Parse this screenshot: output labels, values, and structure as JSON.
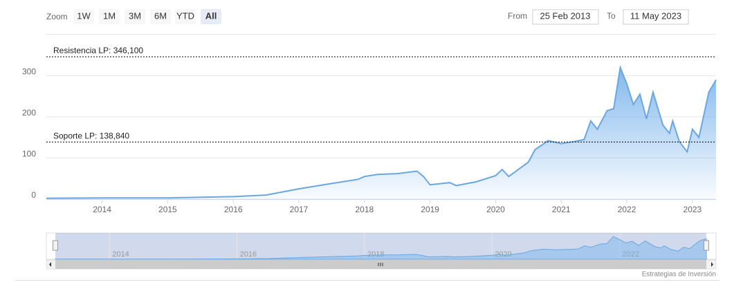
{
  "range_selector": {
    "zoom_label": "Zoom",
    "buttons": [
      "1W",
      "1M",
      "3M",
      "6M",
      "YTD",
      "All"
    ],
    "selected": "All",
    "from_label": "From",
    "from": "25 Feb 2013",
    "to_label": "To",
    "to": "11 May 2023"
  },
  "chart_data": {
    "type": "area",
    "x": [
      2013.15,
      2014,
      2015,
      2016,
      2016.5,
      2017,
      2017.5,
      2017.9,
      2018,
      2018.2,
      2018.5,
      2018.8,
      2018.9,
      2019,
      2019.3,
      2019.4,
      2019.7,
      2020,
      2020.1,
      2020.2,
      2020.5,
      2020.6,
      2020.8,
      2021,
      2021.2,
      2021.35,
      2021.45,
      2021.55,
      2021.7,
      2021.8,
      2021.9,
      2022,
      2022.1,
      2022.2,
      2022.3,
      2022.4,
      2022.55,
      2022.65,
      2022.7,
      2022.8,
      2022.92,
      2023,
      2023.1,
      2023.25,
      2023.36
    ],
    "values": [
      2,
      3,
      3,
      6,
      10,
      25,
      38,
      48,
      55,
      60,
      62,
      68,
      55,
      35,
      40,
      33,
      42,
      57,
      72,
      55,
      90,
      120,
      142,
      135,
      140,
      145,
      190,
      170,
      215,
      220,
      320,
      280,
      230,
      255,
      195,
      260,
      180,
      160,
      190,
      140,
      115,
      170,
      150,
      260,
      290
    ],
    "color": "#6aa6e0",
    "xlim": [
      2013.15,
      2023.36
    ],
    "xticks": [
      2014,
      2015,
      2016,
      2017,
      2018,
      2019,
      2020,
      2021,
      2022,
      2023
    ],
    "ylim": [
      0,
      400
    ],
    "yticks": [
      0,
      100,
      200,
      300
    ],
    "grid": true,
    "plot_lines": [
      {
        "value": 346.1,
        "label": "Resistencia LP: 346,100"
      },
      {
        "value": 138.84,
        "label": "Soporte LP: 138,840"
      }
    ],
    "navigator": {
      "xticks": [
        2014,
        2016,
        2018,
        2020,
        2022
      ]
    },
    "credit": "Estrategias de Inversión"
  }
}
